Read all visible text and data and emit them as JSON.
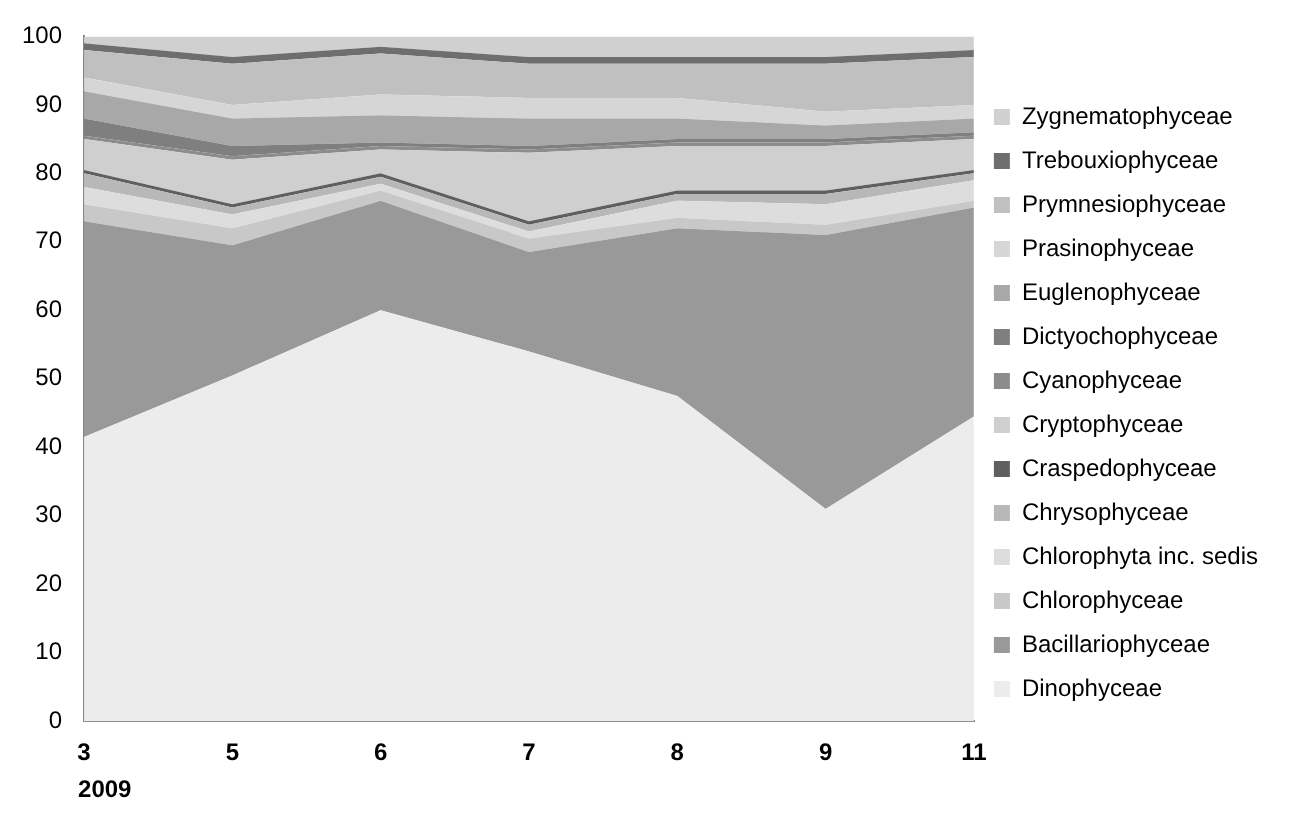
{
  "chart_data": {
    "type": "area",
    "stacked": true,
    "categories": [
      "3",
      "5",
      "6",
      "7",
      "8",
      "9",
      "11"
    ],
    "annotations": [
      "2009"
    ],
    "ylim": [
      0,
      100
    ],
    "yticks": [
      0,
      10,
      20,
      30,
      40,
      50,
      60,
      70,
      80,
      90,
      100
    ],
    "grid": false,
    "legend": "right",
    "series": [
      {
        "name": "Dinophyceae",
        "color": "#ececec",
        "values": [
          41.5,
          50.5,
          60,
          54,
          47.5,
          31,
          44.5
        ]
      },
      {
        "name": "Bacillariophyceae",
        "color": "#999999",
        "values": [
          31.5,
          19,
          16,
          14.5,
          24.5,
          40,
          30.5
        ]
      },
      {
        "name": "Chlorophyceae",
        "color": "#c8c8c8",
        "values": [
          2.5,
          2.5,
          1.5,
          2,
          1.5,
          1.5,
          1
        ]
      },
      {
        "name": "Chlorophyta inc. sedis",
        "color": "#dddddd",
        "values": [
          2.5,
          2,
          1,
          1,
          2.5,
          3,
          3
        ]
      },
      {
        "name": "Chrysophyceae",
        "color": "#b8b8b8",
        "values": [
          2,
          1,
          1,
          1,
          1,
          1.5,
          1
        ]
      },
      {
        "name": "Craspedophyceae",
        "color": "#5f5f5f",
        "values": [
          0.5,
          0.5,
          0.5,
          0.5,
          0.5,
          0.5,
          0.5
        ]
      },
      {
        "name": "Cryptophyceae",
        "color": "#cfcfcf",
        "values": [
          4.5,
          6.5,
          3.5,
          10,
          6.5,
          6.5,
          4.5
        ]
      },
      {
        "name": "Cyanophyceae",
        "color": "#8c8c8c",
        "values": [
          0.5,
          0.5,
          0.5,
          0.5,
          0.5,
          0.5,
          0.5
        ]
      },
      {
        "name": "Dictyochophyceae",
        "color": "#7f7f7f",
        "values": [
          2.5,
          1.5,
          0.5,
          0.5,
          0.5,
          0.5,
          0.5
        ]
      },
      {
        "name": "Euglenophyceae",
        "color": "#a8a8a8",
        "values": [
          4,
          4,
          4,
          4,
          3,
          2,
          2
        ]
      },
      {
        "name": "Prasinophyceae",
        "color": "#d6d6d6",
        "values": [
          2,
          2,
          3,
          3,
          3,
          2,
          2
        ]
      },
      {
        "name": "Prymnesiophyceae",
        "color": "#c0c0c0",
        "values": [
          4,
          6,
          6,
          5,
          5,
          7,
          7
        ]
      },
      {
        "name": "Trebouxiophyceae",
        "color": "#6e6e6e",
        "values": [
          1,
          1,
          1,
          1,
          1,
          1,
          1
        ]
      },
      {
        "name": "Zygnematophyceae",
        "color": "#d0d0d0",
        "values": [
          1,
          3,
          1.5,
          3,
          3,
          3,
          2
        ]
      }
    ]
  }
}
